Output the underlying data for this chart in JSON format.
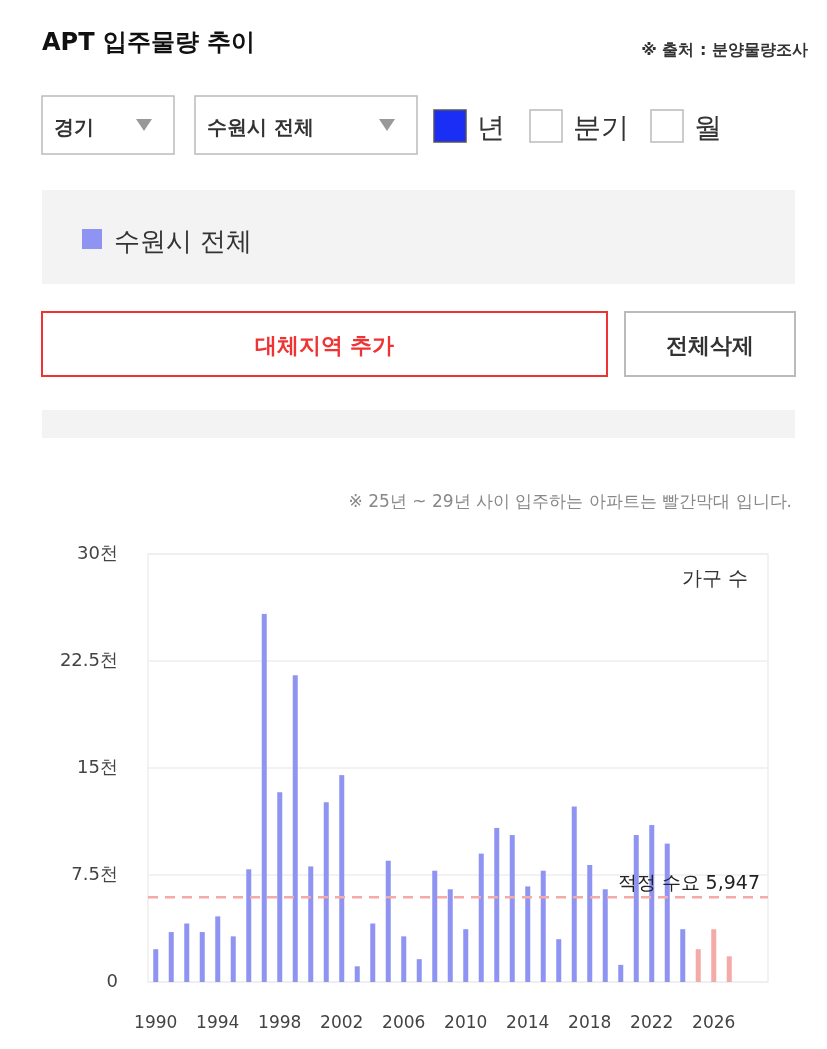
{
  "chart_data": {
    "type": "bar",
    "title": "APT 입주물량 추이",
    "subtitle": "※ 25년 ~ 29년 사이 입주하는 아파트는 빨간막대 입니다.",
    "ylabel": "가구 수",
    "annotations": [
      "※ 출처 : 분양물량조사",
      "경기",
      "수원시 전체",
      "년",
      "분기",
      "월",
      "대체지역 추가",
      "전체삭제"
    ],
    "categories": [
      "1990",
      null,
      null,
      null,
      "1994",
      null,
      null,
      null,
      "1998",
      null,
      null,
      null,
      "2002",
      null,
      null,
      null,
      "2006",
      null,
      null,
      null,
      "2010",
      null,
      null,
      null,
      "2014",
      null,
      null,
      null,
      "2018",
      null,
      null,
      null,
      "2022",
      null,
      null,
      null,
      "2026",
      null,
      null,
      null
    ],
    "series": [
      {
        "name": "수원시 전체",
        "color": "#8f94f2",
        "values": [
          2.3,
          3.5,
          4.1,
          3.5,
          4.6,
          3.2,
          7.9,
          25.8,
          13.3,
          21.5,
          8.1,
          12.6,
          14.5,
          1.1,
          4.1,
          8.5,
          3.2,
          1.6,
          7.8,
          6.5,
          3.7,
          9.0,
          10.8,
          10.3,
          6.7,
          7.8,
          3.0,
          12.3,
          8.2,
          6.5,
          1.2,
          10.3,
          11.0,
          9.7,
          3.7,
          2.3,
          3.7,
          1.8,
          null,
          null
        ],
        "colors": [
          "#8f94f2",
          "#8f94f2",
          "#8f94f2",
          "#8f94f2",
          "#8f94f2",
          "#8f94f2",
          "#8f94f2",
          "#8f94f2",
          "#8f94f2",
          "#8f94f2",
          "#8f94f2",
          "#8f94f2",
          "#8f94f2",
          "#8f94f2",
          "#8f94f2",
          "#8f94f2",
          "#8f94f2",
          "#8f94f2",
          "#8f94f2",
          "#8f94f2",
          "#8f94f2",
          "#8f94f2",
          "#8f94f2",
          "#8f94f2",
          "#8f94f2",
          "#8f94f2",
          "#8f94f2",
          "#8f94f2",
          "#8f94f2",
          "#8f94f2",
          "#8f94f2",
          "#8f94f2",
          "#8f94f2",
          "#8f94f2",
          "#8f94f2",
          "#f4aaa6",
          "#f4aaa6",
          "#f4aaa6",
          null,
          null
        ]
      }
    ],
    "ylim": [
      0,
      30
    ],
    "yticks": [
      0,
      {
        "value": 7.5,
        "label": "7.5천"
      },
      {
        "value": 15,
        "label": "15천"
      },
      {
        "value": 22.5,
        "label": "22.5천"
      },
      {
        "value": 30,
        "label": "30천"
      }
    ],
    "ref_lines": [
      {
        "axis": "y",
        "value": 5.947,
        "label": "적정 수요 5,947",
        "color": "#f4aaa6",
        "line_style": "dashed"
      }
    ],
    "grid": "y",
    "legend": "top"
  }
}
